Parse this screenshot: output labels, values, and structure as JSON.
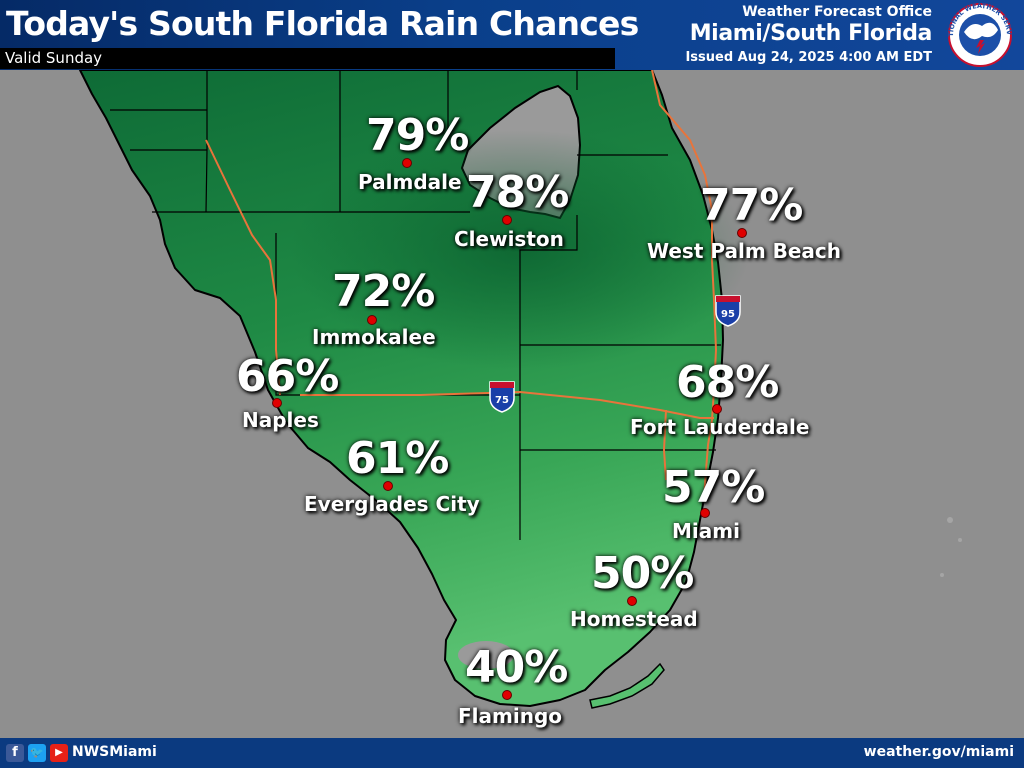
{
  "header": {
    "title": "Today's South Florida Rain Chances",
    "valid": "Valid Sunday",
    "office_top": "Weather Forecast Office",
    "office_name": "Miami/South Florida",
    "issued": "Issued Aug 24, 2025 4:00 AM EDT",
    "logo_text": "NATIONAL WEATHER SERVICE"
  },
  "footer": {
    "handle": "NWSMiami",
    "website": "weather.gov/miami",
    "icons": [
      "facebook-icon",
      "twitter-icon",
      "youtube-icon"
    ]
  },
  "colors": {
    "header_bg": "#0a3f8a",
    "land_dark": "#0e6b36",
    "land_light": "#4fb86a",
    "water": "#8f8f8f",
    "highways": "#e8743b"
  },
  "map": {
    "highway_shields": [
      "95",
      "75"
    ],
    "locations": [
      {
        "name": "Palmdale",
        "value": "79%"
      },
      {
        "name": "Clewiston",
        "value": "78%"
      },
      {
        "name": "West Palm Beach",
        "value": "77%"
      },
      {
        "name": "Immokalee",
        "value": "72%"
      },
      {
        "name": "Naples",
        "value": "66%"
      },
      {
        "name": "Fort Lauderdale",
        "value": "68%"
      },
      {
        "name": "Everglades City",
        "value": "61%"
      },
      {
        "name": "Miami",
        "value": "57%"
      },
      {
        "name": "Homestead",
        "value": "50%"
      },
      {
        "name": "Flamingo",
        "value": "40%"
      }
    ]
  }
}
